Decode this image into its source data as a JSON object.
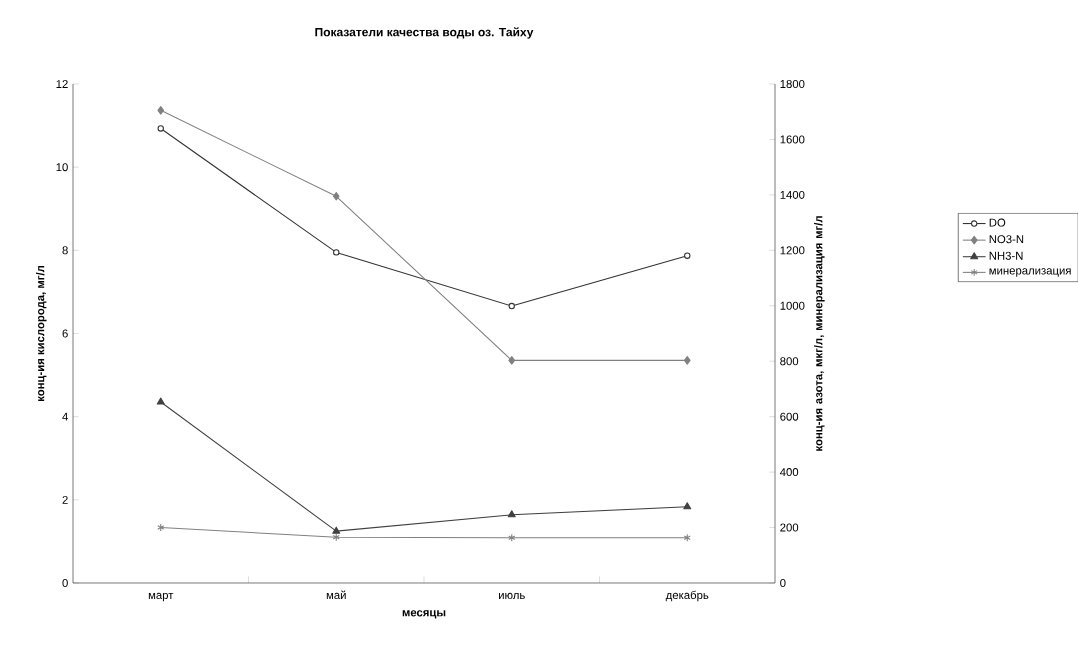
{
  "chart_data": {
    "type": "line",
    "title": "Показатели качества воды оз. Тайху",
    "xlabel": "месяцы",
    "ylabel": "конц-ия кислорода, мг/л",
    "y2label": "конц-ия азота, мкг/л, минерализация мг/л",
    "categories": [
      "март",
      "май",
      "июль",
      "декабрь"
    ],
    "ylim": [
      0,
      12
    ],
    "yticks": [
      0,
      2,
      4,
      6,
      8,
      10,
      12
    ],
    "y2lim": [
      0,
      1800
    ],
    "y2ticks": [
      0,
      200,
      400,
      600,
      800,
      1000,
      1200,
      1400,
      1600,
      1800
    ],
    "legend": "right",
    "grid": false,
    "series": [
      {
        "name": "DO",
        "color": "#333333",
        "marker": "circle",
        "values": [
          10.93,
          7.95,
          6.66,
          7.87
        ]
      },
      {
        "name": "NO3-N",
        "color": "#808080",
        "marker": "diamond",
        "axis": "y2",
        "values": [
          1705,
          1395,
          803,
          803
        ]
      },
      {
        "name": "NH3-N",
        "color": "#404040",
        "marker": "triangle",
        "axis": "y2",
        "values": [
          653,
          187,
          246,
          275
        ]
      },
      {
        "name": "минерализация",
        "color": "#808080",
        "marker": "cross",
        "axis": "y2",
        "values": [
          200,
          165,
          163,
          163
        ]
      }
    ]
  }
}
